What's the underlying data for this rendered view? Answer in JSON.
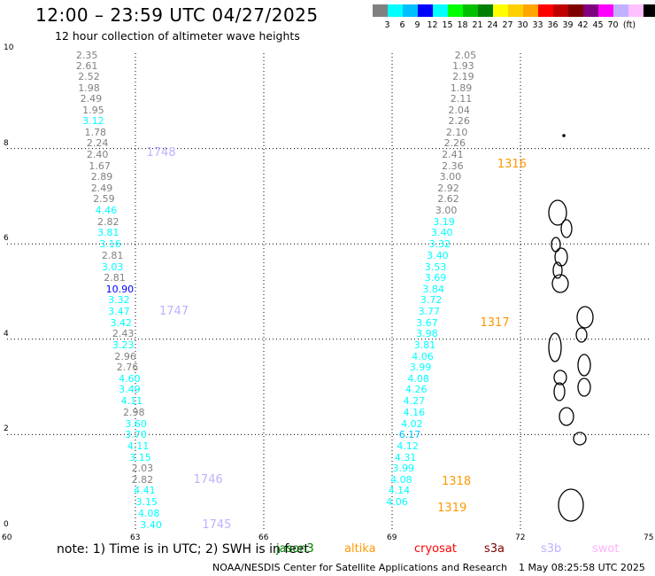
{
  "title": "12:00 – 23:59 UTC 04/27/2025",
  "subtitle": "12 hour collection of altimeter wave heights",
  "legend": {
    "unit": "(ft)",
    "colors": [
      "#808080",
      "#00ffff",
      "#00bfff",
      "#0000ff",
      "#00ffff",
      "#00ff00",
      "#00c000",
      "#008000",
      "#ffff00",
      "#ffd000",
      "#ffa500",
      "#ff0000",
      "#c00000",
      "#800000",
      "#800080",
      "#ff00ff",
      "#c0b0ff",
      "#ffc0ff",
      "#000000"
    ],
    "labels": [
      "3",
      "6",
      "9",
      "12",
      "15",
      "18",
      "21",
      "24",
      "27",
      "30",
      "33",
      "36",
      "39",
      "42",
      "45",
      "70"
    ]
  },
  "axes": {
    "x_ticks": [
      "60",
      "63",
      "66",
      "69",
      "72",
      "75"
    ],
    "y_ticks": [
      "0",
      "2",
      "4",
      "6",
      "8",
      "10"
    ],
    "x_range": [
      60,
      75
    ],
    "y_range": [
      0,
      10
    ]
  },
  "tracks": [
    {
      "pass": "1748",
      "pass_lat": 7.9,
      "pass_lon": 63.3,
      "color": "#c0b0ff",
      "points": [
        {
          "v": "2.35",
          "lon": 61.9,
          "lat": 9.95,
          "c": "#808080"
        },
        {
          "v": "2.61",
          "lon": 61.9,
          "lat": 9.72,
          "c": "#808080"
        },
        {
          "v": "2.52",
          "lon": 61.95,
          "lat": 9.49,
          "c": "#808080"
        },
        {
          "v": "1.98",
          "lon": 61.95,
          "lat": 9.26,
          "c": "#808080"
        },
        {
          "v": "2.49",
          "lon": 62.0,
          "lat": 9.03,
          "c": "#808080"
        },
        {
          "v": "1.95",
          "lon": 62.05,
          "lat": 8.8,
          "c": "#808080"
        },
        {
          "v": "3.12",
          "lon": 62.05,
          "lat": 8.57,
          "c": "#00ffff"
        },
        {
          "v": "1.78",
          "lon": 62.1,
          "lat": 8.33,
          "c": "#808080"
        },
        {
          "v": "2.24",
          "lon": 62.15,
          "lat": 8.1,
          "c": "#808080"
        },
        {
          "v": "2.40",
          "lon": 62.15,
          "lat": 7.86,
          "c": "#808080"
        },
        {
          "v": "1.67",
          "lon": 62.2,
          "lat": 7.63,
          "c": "#808080"
        },
        {
          "v": "2.89",
          "lon": 62.25,
          "lat": 7.4,
          "c": "#808080"
        },
        {
          "v": "2.49",
          "lon": 62.25,
          "lat": 7.16,
          "c": "#808080"
        },
        {
          "v": "2.59",
          "lon": 62.3,
          "lat": 6.93,
          "c": "#808080"
        },
        {
          "v": "4.46",
          "lon": 62.35,
          "lat": 6.69,
          "c": "#00ffff"
        },
        {
          "v": "2.82",
          "lon": 62.4,
          "lat": 6.45,
          "c": "#808080"
        },
        {
          "v": "3.81",
          "lon": 62.4,
          "lat": 6.22,
          "c": "#00ffff"
        },
        {
          "v": "3.16",
          "lon": 62.45,
          "lat": 5.98,
          "c": "#00ffff"
        },
        {
          "v": "2.81",
          "lon": 62.5,
          "lat": 5.75,
          "c": "#808080"
        },
        {
          "v": "3.03",
          "lon": 62.5,
          "lat": 5.51,
          "c": "#00ffff"
        },
        {
          "v": "2.81",
          "lon": 62.55,
          "lat": 5.28,
          "c": "#808080"
        },
        {
          "v": "10.90",
          "lon": 62.6,
          "lat": 5.04,
          "c": "#0000ff"
        },
        {
          "v": "3.32",
          "lon": 62.65,
          "lat": 4.81,
          "c": "#00ffff"
        },
        {
          "v": "3.47",
          "lon": 62.65,
          "lat": 4.57,
          "c": "#00ffff"
        },
        {
          "v": "3.42",
          "lon": 62.7,
          "lat": 4.34,
          "c": "#00ffff"
        },
        {
          "v": "2.43",
          "lon": 62.75,
          "lat": 4.1,
          "c": "#808080"
        },
        {
          "v": "3.23",
          "lon": 62.75,
          "lat": 3.87,
          "c": "#00ffff"
        },
        {
          "v": "2.96",
          "lon": 62.8,
          "lat": 3.63,
          "c": "#808080"
        },
        {
          "v": "2.76",
          "lon": 62.85,
          "lat": 3.4,
          "c": "#808080"
        },
        {
          "v": "4.60",
          "lon": 62.9,
          "lat": 3.16,
          "c": "#00ffff"
        },
        {
          "v": "3.49",
          "lon": 62.9,
          "lat": 2.93,
          "c": "#00ffff"
        },
        {
          "v": "4.11",
          "lon": 62.95,
          "lat": 2.69,
          "c": "#00ffff"
        },
        {
          "v": "2.98",
          "lon": 63.0,
          "lat": 2.46,
          "c": "#808080"
        },
        {
          "v": "3.60",
          "lon": 63.05,
          "lat": 2.22,
          "c": "#00ffff"
        },
        {
          "v": "3.70",
          "lon": 63.05,
          "lat": 1.98,
          "c": "#00ffff"
        },
        {
          "v": "4.11",
          "lon": 63.1,
          "lat": 1.75,
          "c": "#00ffff"
        },
        {
          "v": "3.15",
          "lon": 63.15,
          "lat": 1.51,
          "c": "#00ffff"
        },
        {
          "v": "2.03",
          "lon": 63.2,
          "lat": 1.28,
          "c": "#808080"
        },
        {
          "v": "2.82",
          "lon": 63.2,
          "lat": 1.04,
          "c": "#808080"
        },
        {
          "v": "4.41",
          "lon": 63.25,
          "lat": 0.81,
          "c": "#00ffff"
        },
        {
          "v": "3.15",
          "lon": 63.3,
          "lat": 0.57,
          "c": "#00ffff"
        },
        {
          "v": "4.08",
          "lon": 63.35,
          "lat": 0.34,
          "c": "#00ffff"
        },
        {
          "v": "3.40",
          "lon": 63.4,
          "lat": 0.1,
          "c": "#00ffff"
        }
      ]
    },
    {
      "pass": "1747",
      "pass_lat": 4.58,
      "pass_lon": 63.6,
      "color": "#c0b0ff",
      "points": []
    },
    {
      "pass": "1746",
      "pass_lat": 1.04,
      "pass_lon": 64.4,
      "color": "#c0b0ff",
      "points": []
    },
    {
      "pass": "1745",
      "pass_lat": 0.1,
      "pass_lon": 64.6,
      "color": "#c0b0ff",
      "points": []
    },
    {
      "pass": "1316",
      "pass_lat": 7.66,
      "pass_lon": 71.5,
      "color": "#ff9900",
      "points": [
        {
          "v": "2.05",
          "lon": 70.75,
          "lat": 9.95,
          "c": "#808080"
        },
        {
          "v": "1.93",
          "lon": 70.7,
          "lat": 9.72,
          "c": "#808080"
        },
        {
          "v": "2.19",
          "lon": 70.7,
          "lat": 9.49,
          "c": "#808080"
        },
        {
          "v": "1.89",
          "lon": 70.65,
          "lat": 9.26,
          "c": "#808080"
        },
        {
          "v": "2.11",
          "lon": 70.65,
          "lat": 9.03,
          "c": "#808080"
        },
        {
          "v": "2.04",
          "lon": 70.6,
          "lat": 8.8,
          "c": "#808080"
        },
        {
          "v": "2.26",
          "lon": 70.6,
          "lat": 8.57,
          "c": "#808080"
        },
        {
          "v": "2.10",
          "lon": 70.55,
          "lat": 8.33,
          "c": "#808080"
        },
        {
          "v": "2.26",
          "lon": 70.5,
          "lat": 8.1,
          "c": "#808080"
        },
        {
          "v": "2.41",
          "lon": 70.45,
          "lat": 7.86,
          "c": "#808080"
        },
        {
          "v": "2.36",
          "lon": 70.45,
          "lat": 7.63,
          "c": "#808080"
        },
        {
          "v": "3.00",
          "lon": 70.4,
          "lat": 7.4,
          "c": "#808080"
        },
        {
          "v": "2.92",
          "lon": 70.35,
          "lat": 7.16,
          "c": "#808080"
        },
        {
          "v": "2.62",
          "lon": 70.35,
          "lat": 6.93,
          "c": "#808080"
        },
        {
          "v": "3.00",
          "lon": 70.3,
          "lat": 6.69,
          "c": "#808080"
        }
      ]
    },
    {
      "pass": "1317",
      "pass_lat": 4.34,
      "pass_lon": 71.1,
      "color": "#ff9900",
      "points": [
        {
          "v": "3.19",
          "lon": 70.25,
          "lat": 6.45,
          "c": "#00ffff"
        },
        {
          "v": "3.40",
          "lon": 70.2,
          "lat": 6.22,
          "c": "#00ffff"
        },
        {
          "v": "3.32",
          "lon": 70.15,
          "lat": 5.98,
          "c": "#00ffff"
        },
        {
          "v": "3.40",
          "lon": 70.1,
          "lat": 5.75,
          "c": "#00ffff"
        },
        {
          "v": "3.53",
          "lon": 70.05,
          "lat": 5.51,
          "c": "#00ffff"
        },
        {
          "v": "3.69",
          "lon": 70.05,
          "lat": 5.28,
          "c": "#00ffff"
        },
        {
          "v": "3.84",
          "lon": 70.0,
          "lat": 5.04,
          "c": "#00ffff"
        },
        {
          "v": "3.72",
          "lon": 69.95,
          "lat": 4.81,
          "c": "#00ffff"
        },
        {
          "v": "3.77",
          "lon": 69.9,
          "lat": 4.57,
          "c": "#00ffff"
        },
        {
          "v": "3.67",
          "lon": 69.85,
          "lat": 4.34,
          "c": "#00ffff"
        },
        {
          "v": "3.98",
          "lon": 69.85,
          "lat": 4.1,
          "c": "#00ffff"
        },
        {
          "v": "3.81",
          "lon": 69.8,
          "lat": 3.87,
          "c": "#00ffff"
        },
        {
          "v": "4.06",
          "lon": 69.75,
          "lat": 3.63,
          "c": "#00ffff"
        },
        {
          "v": "3.99",
          "lon": 69.7,
          "lat": 3.4,
          "c": "#00ffff"
        },
        {
          "v": "4.08",
          "lon": 69.65,
          "lat": 3.16,
          "c": "#00ffff"
        },
        {
          "v": "4.26",
          "lon": 69.6,
          "lat": 2.93,
          "c": "#00ffff"
        },
        {
          "v": "4.27",
          "lon": 69.55,
          "lat": 2.69,
          "c": "#00ffff"
        },
        {
          "v": "4.16",
          "lon": 69.55,
          "lat": 2.46,
          "c": "#00ffff"
        },
        {
          "v": "4.02",
          "lon": 69.5,
          "lat": 2.22,
          "c": "#00ffff"
        },
        {
          "v": "6.17",
          "lon": 69.45,
          "lat": 1.98,
          "c": "#00bfff"
        },
        {
          "v": "4.12",
          "lon": 69.4,
          "lat": 1.75,
          "c": "#00ffff"
        },
        {
          "v": "4.31",
          "lon": 69.35,
          "lat": 1.51,
          "c": "#00ffff"
        },
        {
          "v": "3.99",
          "lon": 69.3,
          "lat": 1.28,
          "c": "#00ffff"
        }
      ]
    },
    {
      "pass": "1318",
      "pass_lat": 1.0,
      "pass_lon": 70.2,
      "color": "#ff9900",
      "points": [
        {
          "v": "4.08",
          "lon": 69.25,
          "lat": 1.04,
          "c": "#00ffff"
        },
        {
          "v": "4.14",
          "lon": 69.2,
          "lat": 0.81,
          "c": "#00ffff"
        }
      ]
    },
    {
      "pass": "1319",
      "pass_lat": 0.45,
      "pass_lon": 70.1,
      "color": "#ff9900",
      "points": [
        {
          "v": "4.06",
          "lon": 69.15,
          "lat": 0.57,
          "c": "#00ffff"
        }
      ]
    }
  ],
  "note": "note:  1) Time is in UTC;  2) SWH is in feet",
  "satellites": [
    {
      "name": "jason3",
      "color": "#008000"
    },
    {
      "name": "altika",
      "color": "#ff9900"
    },
    {
      "name": "cryosat",
      "color": "#ff0000"
    },
    {
      "name": "s3a",
      "color": "#800000"
    },
    {
      "name": "s3b",
      "color": "#c0b0ff"
    },
    {
      "name": "swot",
      "color": "#ffb0ff"
    }
  ],
  "credit": "NOAA/NESDIS Center for Satellite Applications and Research",
  "generated": "1 May 08:25:58 UTC 2025"
}
